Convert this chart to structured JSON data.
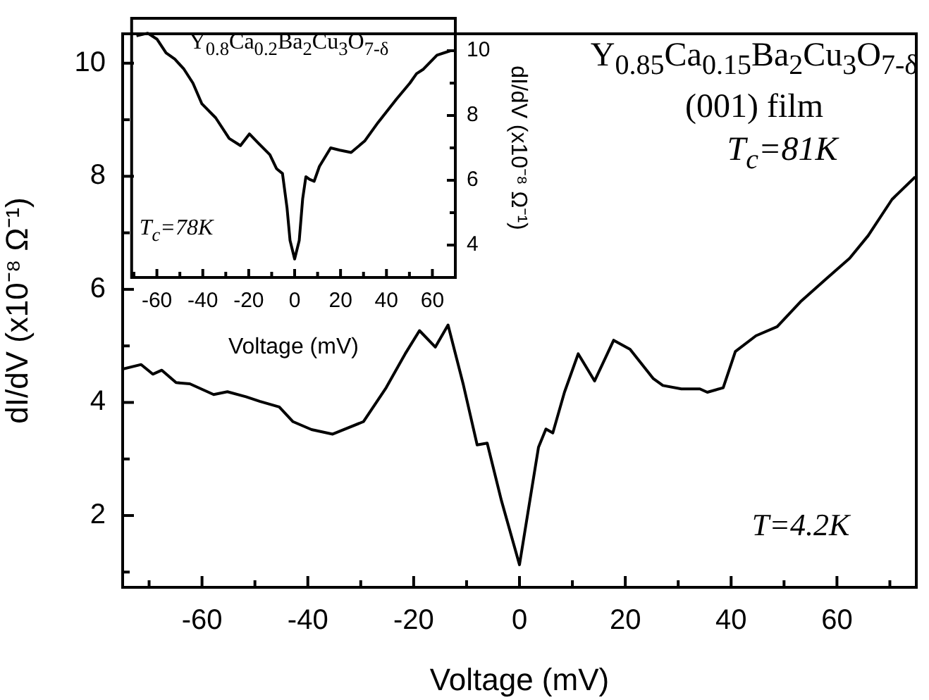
{
  "chart_data": [
    {
      "type": "line",
      "xlabel": "Voltage (mV)",
      "ylabel": "dI/dV (x10⁻⁸ Ω⁻¹)",
      "annotations": [
        "Y$_{0.85}$Ca$_{0.15}$Ba$_{2}$Cu$_{3}$O$_{7-δ}$",
        "(001) film",
        "T$_{c}$=81K",
        "T=4.2K"
      ],
      "x": [
        -75,
        -71.5,
        -69.3,
        -67.6,
        -64.9,
        -62.3,
        -57.8,
        -55.2,
        -51.7,
        -49.1,
        -45.4,
        -42.8,
        -39.3,
        -35.3,
        -29.5,
        -25.2,
        -21.6,
        -18.9,
        -15.9,
        -13.5,
        -10.6,
        -8.0,
        -6.1,
        -3.4,
        0,
        3.6,
        5.0,
        6.3,
        8.5,
        11.1,
        14.2,
        17.8,
        20.9,
        25.3,
        27.1,
        30.6,
        34.1,
        35.5,
        38.5,
        40.8,
        44.7,
        48.7,
        53.1,
        58.0,
        62.4,
        65.9,
        70.4,
        74.8
      ],
      "series": [
        {
          "color": "#000000",
          "values": [
            4.59,
            4.67,
            4.5,
            4.57,
            4.35,
            4.33,
            4.14,
            4.19,
            4.1,
            4.02,
            3.92,
            3.66,
            3.52,
            3.44,
            3.66,
            4.26,
            4.86,
            5.27,
            4.98,
            5.37,
            4.31,
            3.25,
            3.28,
            2.26,
            1.13,
            3.21,
            3.53,
            3.46,
            4.18,
            4.86,
            4.38,
            5.1,
            4.94,
            4.42,
            4.3,
            4.24,
            4.24,
            4.18,
            4.26,
            4.9,
            5.18,
            5.34,
            5.78,
            6.19,
            6.55,
            6.95,
            7.59,
            7.99
          ]
        }
      ],
      "xlim": [
        -75,
        75
      ],
      "xticks": [
        {
          "value": -70,
          "label": null
        },
        -60,
        {
          "value": -50,
          "label": null
        },
        -40,
        {
          "value": -30,
          "label": null
        },
        -20,
        {
          "value": -10,
          "label": null
        },
        0,
        {
          "value": 10,
          "label": null
        },
        20,
        {
          "value": 30,
          "label": null
        },
        40,
        {
          "value": 50,
          "label": null
        },
        60,
        {
          "value": 70,
          "label": null
        }
      ],
      "ylim": [
        0.73,
        10.52
      ],
      "yticks": [
        {
          "value": 1,
          "label": null
        },
        2,
        {
          "value": 3,
          "label": null
        },
        4,
        {
          "value": 5,
          "label": null
        },
        6,
        {
          "value": 7,
          "label": null
        },
        8,
        {
          "value": 9,
          "label": null
        },
        10
      ]
    },
    {
      "type": "line",
      "xlabel": "Voltage (mV)",
      "y2label": "dI/dV (x10⁻⁸ Ω⁻¹)",
      "annotations": [
        "Y$_{0.8}$Ca$_{0.2}$Ba$_{2}$Cu$_{3}$O$_{7-δ}$",
        "T$_{c}$=78K"
      ],
      "x": [
        -68.9,
        -64,
        -60,
        -56,
        -52.2,
        -48.2,
        -44.3,
        -40.4,
        -34.4,
        -28.5,
        -23.6,
        -19.7,
        -15.7,
        -10.8,
        -7.9,
        -5.3,
        -3.3,
        -2.0,
        0,
        2.0,
        3.5,
        4.9,
        6.5,
        8.5,
        10.8,
        15.7,
        19.7,
        24.6,
        30.5,
        36.4,
        44.3,
        50.2,
        53.1,
        56.1,
        62,
        67.9
      ],
      "series": [
        {
          "color": "#000000",
          "axis": "y2",
          "values": [
            10.46,
            10.54,
            10.36,
            9.93,
            9.74,
            9.43,
            9.0,
            8.36,
            7.93,
            7.29,
            7.07,
            7.43,
            7.14,
            6.79,
            6.36,
            6.21,
            5.14,
            4.14,
            3.57,
            4.14,
            5.43,
            6.11,
            6.03,
            5.97,
            6.43,
            7.0,
            6.93,
            6.86,
            7.21,
            7.79,
            8.5,
            9.0,
            9.29,
            9.43,
            9.86,
            10.0
          ]
        }
      ],
      "xlim": [
        -71,
        70
      ],
      "xticks": [
        {
          "value": -70,
          "label": null
        },
        -60,
        {
          "value": -50,
          "label": null
        },
        -40,
        {
          "value": -30,
          "label": null
        },
        -20,
        {
          "value": -10,
          "label": null
        },
        0,
        {
          "value": 10,
          "label": null
        },
        20,
        {
          "value": 30,
          "label": null
        },
        40,
        {
          "value": 50,
          "label": null
        },
        60
      ],
      "y2lim": [
        3,
        11
      ],
      "y2ticks": [
        4,
        {
          "value": 5,
          "label": null
        },
        6,
        {
          "value": 7,
          "label": null
        },
        8,
        {
          "value": 9,
          "label": null
        },
        10
      ]
    }
  ]
}
